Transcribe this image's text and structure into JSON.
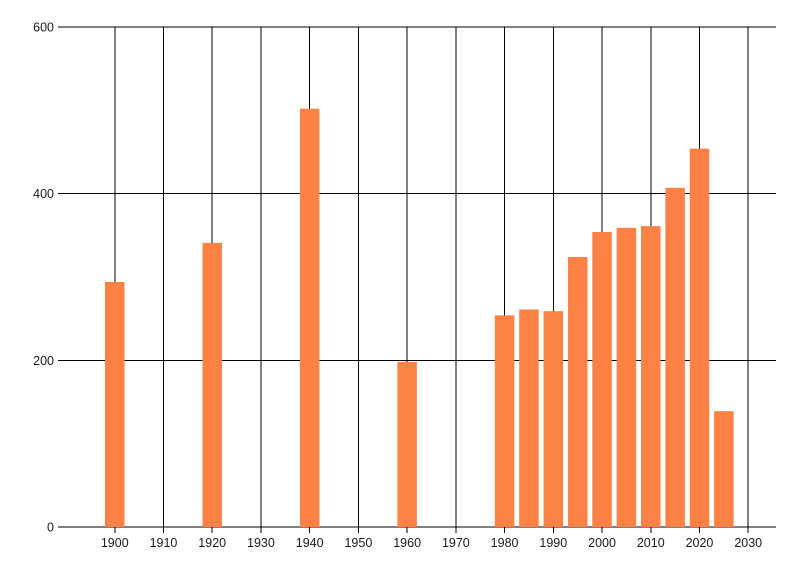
{
  "chart_data": {
    "type": "bar",
    "title": "",
    "xlabel": "",
    "ylabel": "",
    "x": [
      1900,
      1920,
      1940,
      1960,
      1980,
      1985,
      1990,
      1995,
      2000,
      2005,
      2010,
      2015,
      2020,
      2025
    ],
    "values": [
      294,
      341,
      502,
      198,
      254,
      261,
      259,
      324,
      354,
      359,
      361,
      407,
      454,
      139
    ],
    "xticks": [
      1900,
      1910,
      1920,
      1930,
      1940,
      1950,
      1960,
      1970,
      1980,
      1990,
      2000,
      2010,
      2020,
      2030
    ],
    "yticks": [
      0,
      200,
      400,
      600
    ],
    "xlim": [
      1890.2,
      2035.7
    ],
    "ylim": [
      0,
      600
    ],
    "grid": true,
    "legend": null,
    "bar_color": "#FC8144",
    "axis_color": "#000000",
    "label_color": "#1a1a1a",
    "background": "#FFFFFF",
    "bar_width_years": 4.0
  }
}
